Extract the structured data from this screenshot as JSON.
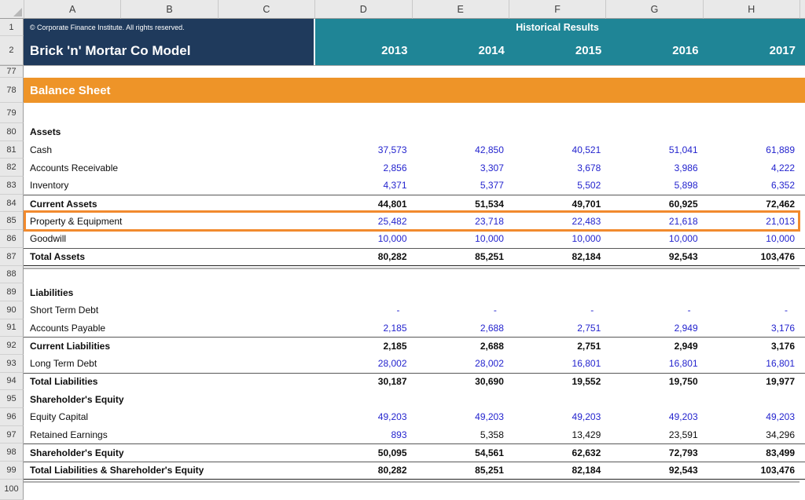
{
  "columns": [
    "A",
    "B",
    "C",
    "D",
    "E",
    "F",
    "G",
    "H"
  ],
  "title_band": {
    "row_nums": [
      "1",
      "2"
    ],
    "copyright": "© Corporate Finance Institute. All rights reserved.",
    "company_name": "Brick 'n' Mortar Co Model",
    "period_label": "Historical Results",
    "years": [
      "2013",
      "2014",
      "2015",
      "2016",
      "2017"
    ]
  },
  "colors": {
    "navy": "#1F3A5C",
    "teal": "#1F8596",
    "orange": "#EE9428",
    "sel": "#F18A2E",
    "blue": "#2323CE"
  },
  "sheet_rows": [
    {
      "num": "77",
      "type": "spacer"
    },
    {
      "num": "78",
      "type": "section",
      "label": "Balance Sheet"
    },
    {
      "num": "79",
      "type": "spacer"
    },
    {
      "num": "80",
      "type": "heading",
      "label": "Assets"
    },
    {
      "num": "81",
      "type": "data",
      "label": "Cash",
      "values": [
        "37,573",
        "42,850",
        "40,521",
        "51,041",
        "61,889"
      ]
    },
    {
      "num": "82",
      "type": "data",
      "label": "Accounts Receivable",
      "values": [
        "2,856",
        "3,307",
        "3,678",
        "3,986",
        "4,222"
      ]
    },
    {
      "num": "83",
      "type": "data",
      "label": "Inventory",
      "values": [
        "4,371",
        "5,377",
        "5,502",
        "5,898",
        "6,352"
      ]
    },
    {
      "num": "84",
      "type": "subtotal",
      "label": "Current Assets",
      "values": [
        "44,801",
        "51,534",
        "49,701",
        "60,925",
        "72,462"
      ]
    },
    {
      "num": "85",
      "type": "data",
      "label": "Property & Equipment",
      "selected": true,
      "values": [
        "25,482",
        "23,718",
        "22,483",
        "21,618",
        "21,013"
      ]
    },
    {
      "num": "86",
      "type": "data",
      "label": "Goodwill",
      "values": [
        "10,000",
        "10,000",
        "10,000",
        "10,000",
        "10,000"
      ]
    },
    {
      "num": "87",
      "type": "total",
      "label": "Total Assets",
      "values": [
        "80,282",
        "85,251",
        "82,184",
        "92,543",
        "103,476"
      ]
    },
    {
      "num": "88",
      "type": "spacer"
    },
    {
      "num": "89",
      "type": "heading",
      "label": "Liabilities"
    },
    {
      "num": "90",
      "type": "data",
      "label": "Short Term Debt",
      "values": [
        "-",
        "-",
        "-",
        "-",
        "-"
      ]
    },
    {
      "num": "91",
      "type": "data",
      "label": "Accounts Payable",
      "values": [
        "2,185",
        "2,688",
        "2,751",
        "2,949",
        "3,176"
      ]
    },
    {
      "num": "92",
      "type": "subtotal",
      "label": "Current Liabilities",
      "values": [
        "2,185",
        "2,688",
        "2,751",
        "2,949",
        "3,176"
      ]
    },
    {
      "num": "93",
      "type": "data",
      "label": "Long Term Debt",
      "values": [
        "28,002",
        "28,002",
        "16,801",
        "16,801",
        "16,801"
      ]
    },
    {
      "num": "94",
      "type": "subtotal",
      "label": "Total Liabilities",
      "values": [
        "30,187",
        "30,690",
        "19,552",
        "19,750",
        "19,977"
      ]
    },
    {
      "num": "95",
      "type": "heading",
      "label": "Shareholder's Equity"
    },
    {
      "num": "96",
      "type": "data",
      "label": "Equity Capital",
      "values": [
        "49,203",
        "49,203",
        "49,203",
        "49,203",
        "49,203"
      ]
    },
    {
      "num": "97",
      "type": "data",
      "label": "Retained Earnings",
      "values": [
        "893",
        "5,358",
        "13,429",
        "23,591",
        "34,296"
      ],
      "value_colors": [
        "blue",
        "black",
        "black",
        "black",
        "black"
      ]
    },
    {
      "num": "98",
      "type": "subtotal",
      "label": "Shareholder's Equity",
      "values": [
        "50,095",
        "54,561",
        "62,632",
        "72,793",
        "83,499"
      ]
    },
    {
      "num": "99",
      "type": "total",
      "label": "Total Liabilities & Shareholder's Equity",
      "values": [
        "80,282",
        "85,251",
        "82,184",
        "92,543",
        "103,476"
      ]
    },
    {
      "num": "100",
      "type": "spacer"
    }
  ]
}
